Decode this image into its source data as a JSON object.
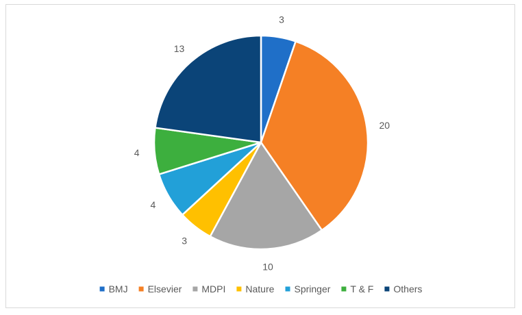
{
  "chart_data": {
    "type": "pie",
    "title": "",
    "categories": [
      "BMJ",
      "Elsevier",
      "MDPI",
      "Nature",
      "Springer",
      "T & F",
      "Others"
    ],
    "values": [
      3,
      20,
      10,
      3,
      4,
      4,
      13
    ],
    "colors": [
      "#1f6fc8",
      "#f58025",
      "#a6a6a6",
      "#ffc000",
      "#22a0d8",
      "#3daf3e",
      "#0b4478"
    ],
    "start_angle_deg": 0,
    "direction": "clockwise",
    "data_labels": "outside",
    "legend_position": "bottom"
  }
}
